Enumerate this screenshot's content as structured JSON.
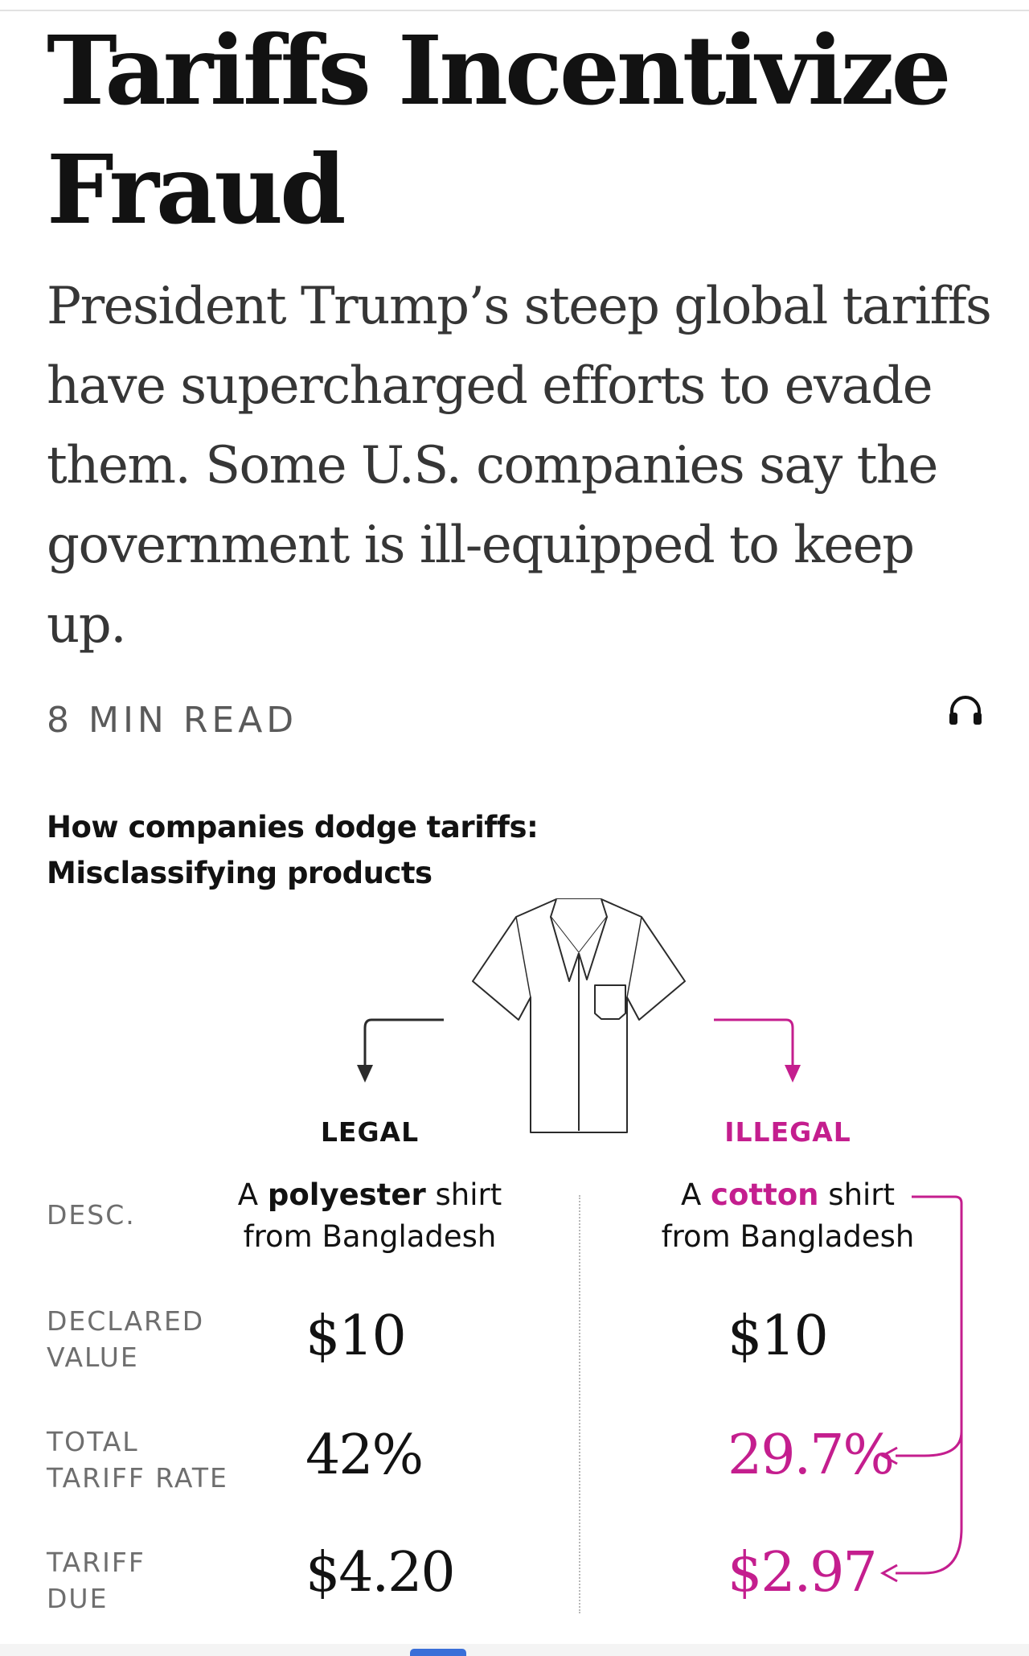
{
  "article": {
    "headline": "Tariffs Incentivize Fraud",
    "summary": "President Trump’s steep global tariffs have supercharged efforts to evade them. Some U.S. companies say the government is ill-equipped to keep up.",
    "read_time": "8 MIN READ",
    "audio_icon": "headphones-icon"
  },
  "graphic": {
    "title_line1": "How companies dodge tariffs:",
    "title_line2": "Misclassifying products",
    "illustration_icon": "shirt-icon",
    "columns": {
      "legal": {
        "label": "LEGAL",
        "desc_pre": "A ",
        "desc_bold": "polyester",
        "desc_post": " shirt",
        "desc_line2": "from Bangladesh",
        "declared_value": "$10",
        "tariff_rate": "42%",
        "tariff_due": "$4.20"
      },
      "illegal": {
        "label": "ILLEGAL",
        "desc_pre": "A ",
        "desc_bold": "cotton",
        "desc_post": " shirt",
        "desc_line2": "from Bangladesh",
        "declared_value": "$10",
        "tariff_rate": "29.7%",
        "tariff_due": "$2.97"
      }
    },
    "rows": {
      "desc": "DESC.",
      "declared_value": "DECLARED\nVALUE",
      "tariff_rate": "TOTAL\nTARIFF RATE",
      "tariff_due": "TARIFF\nDUE"
    },
    "colors": {
      "legal": "#121212",
      "illegal": "#c41e8e"
    }
  }
}
